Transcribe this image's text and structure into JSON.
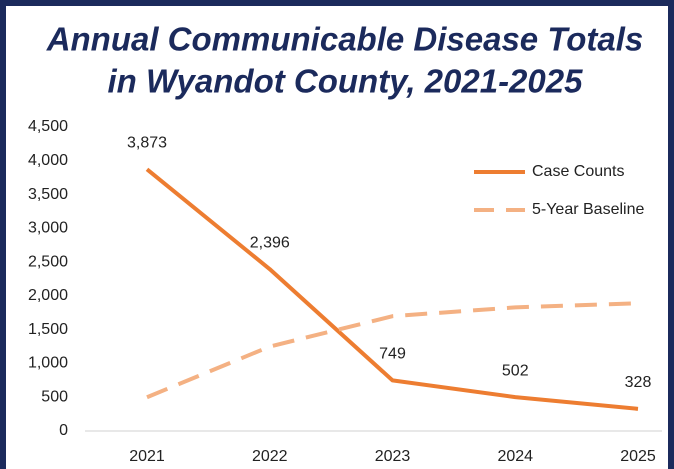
{
  "chart_data": {
    "type": "line",
    "title": [
      "Annual Communicable Disease Totals",
      "in Wyandot County, 2021-2025"
    ],
    "categories": [
      "2021",
      "2022",
      "2023",
      "2024",
      "2025"
    ],
    "series": [
      {
        "name": "Case Counts",
        "color": "#ed7d31",
        "dash": false,
        "values": [
          3873,
          2396,
          749,
          502,
          328
        ],
        "value_labels": [
          "3,873",
          "2,396",
          "749",
          "502",
          "328"
        ]
      },
      {
        "name": "5-Year Baseline",
        "color": "#f4b183",
        "dash": true,
        "values": [
          500,
          1250,
          1700,
          1830,
          1890
        ]
      }
    ],
    "ylim": [
      0,
      4500
    ],
    "yticks": [
      0,
      500,
      {
        "value": 1000,
        "label": "1,000"
      },
      {
        "value": 1500,
        "label": "1,500"
      },
      {
        "value": 2000,
        "label": "2,000"
      },
      {
        "value": 2500,
        "label": "2,500"
      },
      {
        "value": 3000,
        "label": "3,000"
      },
      {
        "value": 3500,
        "label": "3,500"
      },
      {
        "value": 4000,
        "label": "4,000"
      },
      {
        "value": 4500,
        "label": "4,500"
      }
    ],
    "legend": "upper right"
  }
}
